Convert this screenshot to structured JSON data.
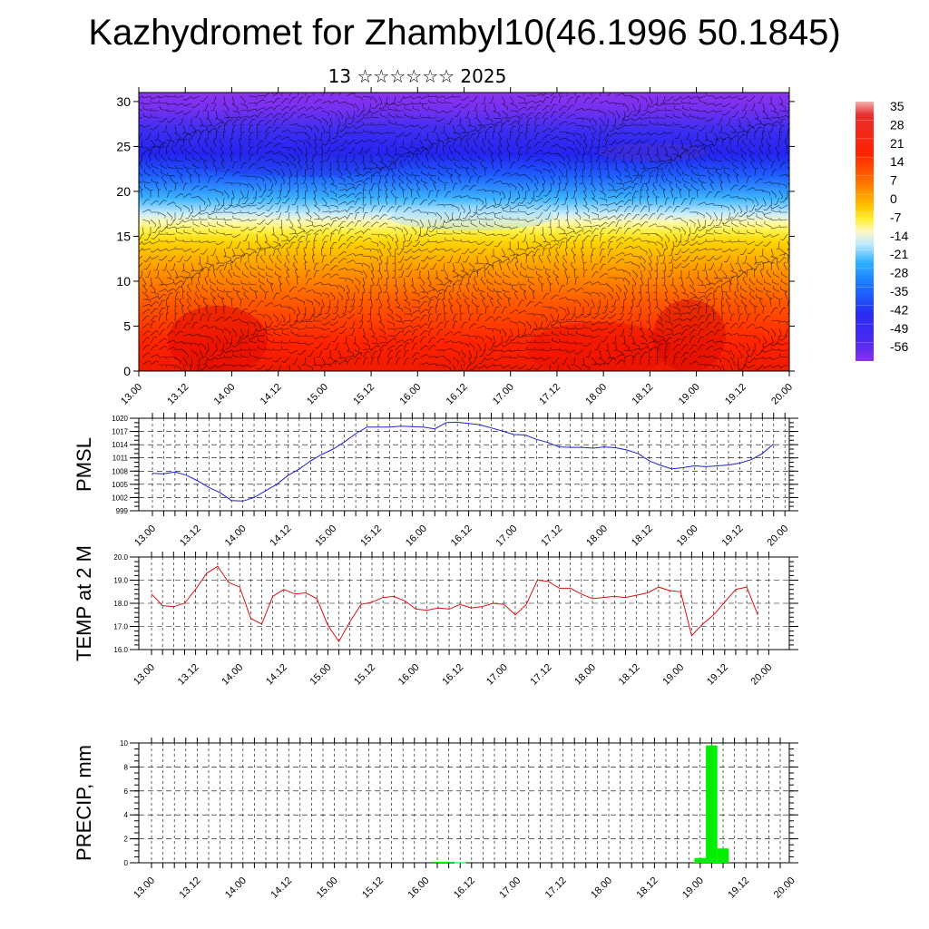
{
  "title": "Kazhydromet for Zhambyl10(46.1996 50.1845)",
  "subtitle": "13 ☆☆☆☆☆☆ 2025",
  "colors": {
    "pmsl_line": "#1f1fd0",
    "temp_line": "#dd1111",
    "precip_bar": "#00ee00",
    "wind_barb": "#000000"
  },
  "chart_data": [
    {
      "type": "heatmap",
      "name": "vertical-cross-section",
      "x_ticks": [
        "13.00",
        "13.12",
        "14.00",
        "14.12",
        "15.00",
        "15.12",
        "16.00",
        "16.12",
        "17.00",
        "17.12",
        "18.00",
        "18.12",
        "19.00",
        "19.12",
        "20.00"
      ],
      "y_ticks": [
        "0",
        "5",
        "10",
        "15",
        "20",
        "25",
        "30"
      ],
      "ylim": [
        0,
        31
      ],
      "overlay": "wind barbs",
      "colorbar": {
        "labels": [
          "35",
          "28",
          "21",
          "14",
          "7",
          "0",
          "-7",
          "-14",
          "-21",
          "-28",
          "-35",
          "-42",
          "-49",
          "-56"
        ],
        "min": -60,
        "max": 38
      }
    },
    {
      "type": "line",
      "ylabel": "PMSL",
      "x_ticks": [
        "13.00",
        "13.12",
        "14.00",
        "14.12",
        "15.00",
        "15.12",
        "16.00",
        "16.12",
        "17.00",
        "17.12",
        "18.00",
        "18.12",
        "19.00",
        "19.12",
        "20.00"
      ],
      "y_ticks": [
        "1020",
        "1017",
        "1014",
        "1011",
        "1008",
        "1005",
        "1002",
        "999"
      ],
      "ylim": [
        999,
        1020
      ],
      "x": [
        0,
        3,
        6,
        9,
        12,
        15,
        18,
        21,
        24,
        27,
        30,
        33,
        36,
        39,
        42,
        45,
        48,
        51,
        54,
        57,
        60,
        63,
        66,
        69,
        72,
        75,
        78,
        81,
        84,
        87,
        90,
        93,
        96,
        99,
        102,
        105,
        108,
        111,
        114,
        117,
        120,
        123,
        126,
        129,
        132,
        135,
        138,
        141,
        144,
        147,
        150,
        153,
        156,
        159,
        162,
        165
      ],
      "values": [
        1007.5,
        1007.4,
        1007.8,
        1007.1,
        1005.8,
        1004.3,
        1003.1,
        1001.3,
        1001.2,
        1002.0,
        1003.5,
        1005.0,
        1007.0,
        1008.5,
        1010.3,
        1011.8,
        1013.0,
        1014.6,
        1016.5,
        1018.0,
        1018.0,
        1018.0,
        1018.2,
        1018.1,
        1018.0,
        1017.6,
        1019.0,
        1019.1,
        1018.8,
        1018.5,
        1017.8,
        1017.1,
        1016.3,
        1016.2,
        1015.2,
        1014.5,
        1013.5,
        1013.4,
        1013.4,
        1013.2,
        1013.5,
        1013.3,
        1012.8,
        1012.0,
        1010.3,
        1009.3,
        1008.5,
        1008.8,
        1009.2,
        1009.0,
        1009.2,
        1009.4,
        1009.8,
        1010.6,
        1012.0,
        1014.2
      ]
    },
    {
      "type": "line",
      "ylabel": "TEMP at 2 M",
      "x_ticks": [
        "13.00",
        "13.12",
        "14.00",
        "14.12",
        "15.00",
        "15.12",
        "16.00",
        "16.12",
        "17.00",
        "17.12",
        "18.00",
        "18.12",
        "19.00",
        "19.12",
        "20.00"
      ],
      "y_ticks": [
        "20.0",
        "19.0",
        "18.0",
        "17.0",
        "16.0"
      ],
      "ylim": [
        16,
        20
      ],
      "x": [
        0,
        3,
        6,
        9,
        12,
        15,
        18,
        21,
        24,
        27,
        30,
        33,
        36,
        39,
        42,
        45,
        48,
        51,
        54,
        57,
        60,
        63,
        66,
        69,
        72,
        75,
        78,
        81,
        84,
        87,
        90,
        93,
        96,
        99,
        102,
        105,
        108,
        111,
        114,
        117,
        120,
        123,
        126,
        129,
        132,
        135,
        138,
        141,
        144,
        147,
        150,
        153,
        156,
        159,
        162,
        165
      ],
      "values": [
        18.4,
        17.9,
        17.85,
        18.0,
        18.6,
        19.3,
        19.6,
        18.9,
        18.7,
        17.35,
        17.1,
        18.3,
        18.6,
        18.4,
        18.45,
        18.2,
        17.05,
        16.35,
        17.2,
        17.95,
        18.05,
        18.25,
        18.3,
        18.1,
        17.75,
        17.7,
        17.8,
        17.75,
        17.95,
        17.8,
        17.85,
        18.0,
        17.95,
        17.5,
        17.95,
        19.0,
        18.95,
        18.65,
        18.65,
        18.4,
        18.2,
        18.25,
        18.3,
        18.25,
        18.35,
        18.45,
        18.7,
        18.55,
        18.5,
        16.6,
        17.1,
        17.5,
        18.05,
        18.6,
        18.7,
        17.5
      ]
    },
    {
      "type": "bar",
      "ylabel": "PRECIP, mm",
      "x_ticks": [
        "13.00",
        "13.12",
        "14.00",
        "14.12",
        "15.00",
        "15.12",
        "16.00",
        "16.12",
        "17.00",
        "17.12",
        "18.00",
        "18.12",
        "19.00",
        "19.12",
        "20.00"
      ],
      "y_ticks": [
        "10",
        "8",
        "6",
        "4",
        "2",
        "0"
      ],
      "ylim": [
        0,
        10
      ],
      "bars": [
        {
          "x": 75,
          "value": 0.08
        },
        {
          "x": 78,
          "value": 0.08
        },
        {
          "x": 81,
          "value": 0.04
        },
        {
          "x": 144,
          "value": 0.4
        },
        {
          "x": 147,
          "value": 9.8
        },
        {
          "x": 150,
          "value": 1.2
        }
      ]
    }
  ]
}
